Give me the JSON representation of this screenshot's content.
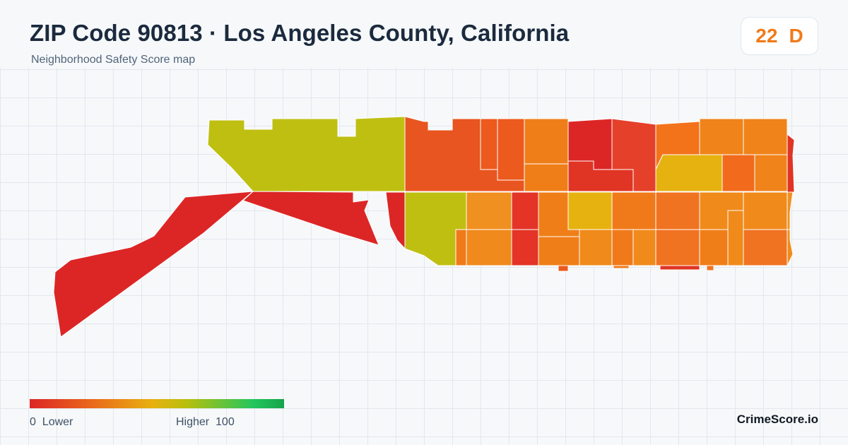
{
  "title": "ZIP Code 90813 · Los Angeles County, California",
  "subtitle": "Neighborhood Safety Score map",
  "score": {
    "value": "22",
    "grade": "D",
    "color": "#f07a1a"
  },
  "legend": {
    "min_value": "0",
    "min_label": "Lower",
    "max_label": "Higher",
    "max_value": "100",
    "colors": [
      "#dc2626",
      "#ea6a1a",
      "#e8b010",
      "#b6c00e",
      "#22c55e",
      "#16a34a"
    ]
  },
  "brand": "CrimeScore.io"
}
